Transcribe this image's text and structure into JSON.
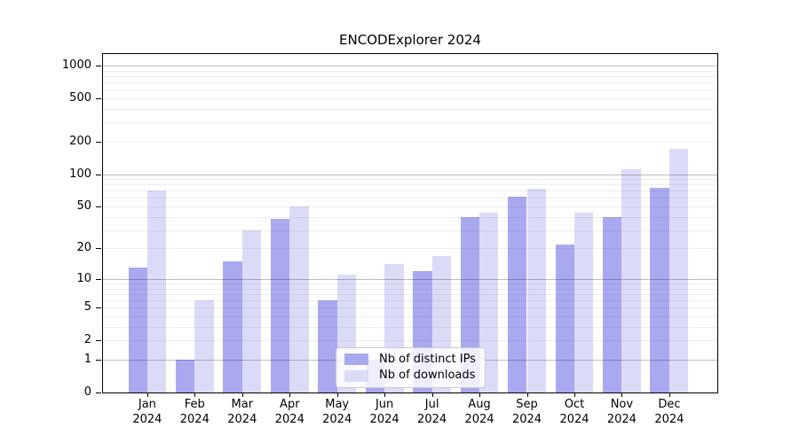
{
  "title": "ENCODExplorer 2024",
  "legend": {
    "items": [
      {
        "label": "Nb of distinct IPs",
        "color": "#a9a9f0"
      },
      {
        "label": "Nb of downloads",
        "color": "#dbdbf8"
      }
    ]
  },
  "chart_data": {
    "type": "bar",
    "title": "ENCODExplorer 2024",
    "xlabel": "",
    "ylabel": "",
    "year": "2024",
    "months": [
      "Jan",
      "Feb",
      "Mar",
      "Apr",
      "May",
      "Jun",
      "Jul",
      "Aug",
      "Sep",
      "Oct",
      "Nov",
      "Dec"
    ],
    "categories": [
      "Jan 2024",
      "Feb 2024",
      "Mar 2024",
      "Apr 2024",
      "May 2024",
      "Jun 2024",
      "Jul 2024",
      "Aug 2024",
      "Sep 2024",
      "Oct 2024",
      "Nov 2024",
      "Dec 2024"
    ],
    "series": [
      {
        "name": "Nb of distinct IPs",
        "color": "#a9a9f0",
        "values": [
          13,
          1,
          15,
          38,
          6,
          1,
          12,
          40,
          62,
          22,
          40,
          75
        ]
      },
      {
        "name": "Nb of downloads",
        "color": "#dbdbf8",
        "values": [
          70,
          6,
          30,
          50,
          11,
          14,
          17,
          44,
          73,
          44,
          112,
          170
        ]
      }
    ],
    "yscale": "symlog (log10 of 1+v)",
    "y_ticks": [
      1000,
      500,
      200,
      100,
      50,
      20,
      10,
      5,
      2,
      1,
      0
    ],
    "ylim": [
      0,
      1300
    ],
    "grid": true,
    "legend_position": "lower center"
  }
}
